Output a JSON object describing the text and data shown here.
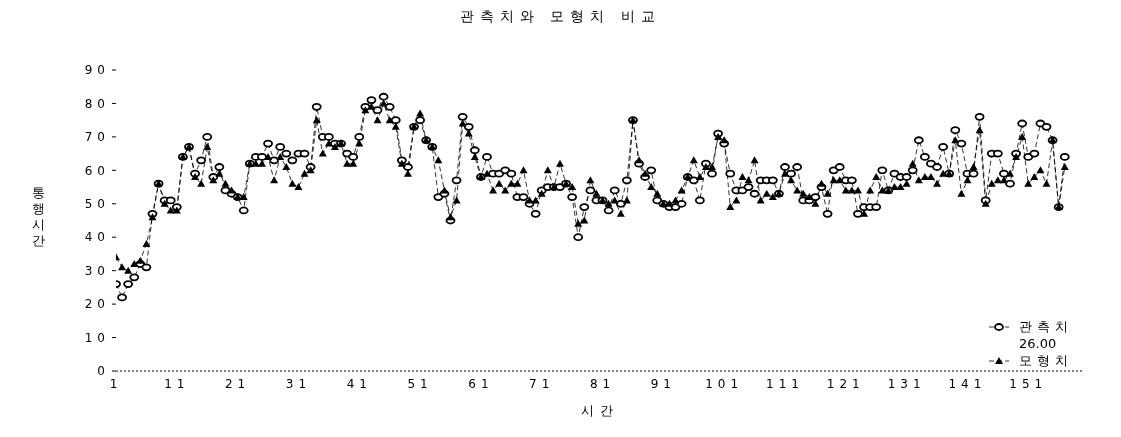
{
  "chart_data": {
    "type": "line",
    "title": "관측치와 모형치 비교",
    "xlabel": "시간",
    "ylabel": "통행시간",
    "x": [
      1,
      2,
      3,
      4,
      5,
      6,
      7,
      8,
      9,
      10,
      11,
      12,
      13,
      14,
      15,
      16,
      17,
      18,
      19,
      20,
      21,
      22,
      23,
      24,
      25,
      26,
      27,
      28,
      29,
      30,
      31,
      32,
      33,
      34,
      35,
      36,
      37,
      38,
      39,
      40,
      41,
      42,
      43,
      44,
      45,
      46,
      47,
      48,
      49,
      50,
      51,
      52,
      53,
      54,
      55,
      56,
      57,
      58,
      59,
      60,
      61,
      62,
      63,
      64,
      65,
      66,
      67,
      68,
      69,
      70,
      71,
      72,
      73,
      74,
      75,
      76,
      77,
      78,
      79,
      80,
      81,
      82,
      83,
      84,
      85,
      86,
      87,
      88,
      89,
      90,
      91,
      92,
      93,
      94,
      95,
      96,
      97,
      98,
      99,
      100,
      101,
      102,
      103,
      104,
      105,
      106,
      107,
      108,
      109,
      110,
      111,
      112,
      113,
      114,
      115,
      116,
      117,
      118,
      119,
      120,
      121,
      122,
      123,
      124,
      125,
      126,
      127,
      128,
      129,
      130,
      131,
      132,
      133,
      134,
      135,
      136,
      137,
      138,
      139,
      140,
      141,
      142,
      143,
      144,
      145,
      146,
      147,
      148,
      149,
      150,
      151,
      152,
      153,
      154,
      155,
      156,
      157
    ],
    "series": [
      {
        "name": "관측치",
        "color": "#000000",
        "marker": "circle",
        "values": [
          26,
          22,
          26,
          28,
          32,
          31,
          47,
          56,
          51,
          51,
          49,
          64,
          67,
          59,
          63,
          70,
          58,
          61,
          54,
          53,
          52,
          48,
          62,
          64,
          64,
          68,
          63,
          67,
          65,
          63,
          65,
          65,
          61,
          79,
          70,
          70,
          68,
          68,
          65,
          64,
          70,
          79,
          81,
          78,
          82,
          79,
          75,
          63,
          61,
          73,
          75,
          69,
          67,
          52,
          53,
          45,
          57,
          76,
          73,
          66,
          58,
          64,
          59,
          59,
          60,
          59,
          52,
          52,
          50,
          47,
          54,
          55,
          55,
          55,
          56,
          52,
          40,
          49,
          54,
          51,
          51,
          48,
          54,
          50,
          57,
          75,
          62,
          58,
          60,
          51,
          50,
          49,
          49,
          50,
          58,
          57,
          51,
          62,
          59,
          71,
          68,
          59,
          54,
          54,
          55,
          53,
          57,
          57,
          57,
          53,
          61,
          59,
          61,
          51,
          51,
          52,
          55,
          47,
          60,
          61,
          57,
          57,
          47,
          49,
          49,
          49,
          60,
          54,
          59,
          58,
          58,
          60,
          69,
          64,
          62,
          61,
          67,
          59,
          72,
          68,
          59,
          59,
          76,
          51,
          65,
          65,
          59,
          56,
          65,
          74,
          64,
          65,
          74,
          73,
          69,
          49,
          64
        ]
      },
      {
        "name": "모형치",
        "color": "#000000",
        "marker": "triangle",
        "values": [
          34,
          31,
          30,
          32,
          33,
          38,
          46,
          56,
          50,
          48,
          48,
          64,
          67,
          58,
          56,
          67,
          57,
          59,
          56,
          54,
          52,
          52,
          62,
          62,
          62,
          64,
          57,
          64,
          61,
          56,
          55,
          59,
          60,
          75,
          65,
          68,
          67,
          68,
          62,
          62,
          68,
          78,
          79,
          75,
          80,
          75,
          73,
          62,
          59,
          73,
          77,
          69,
          67,
          63,
          54,
          46,
          51,
          74,
          71,
          64,
          58,
          59,
          54,
          56,
          54,
          56,
          56,
          60,
          51,
          51,
          53,
          60,
          55,
          62,
          56,
          55,
          44,
          45,
          57,
          53,
          51,
          50,
          51,
          47,
          51,
          75,
          63,
          59,
          55,
          53,
          50,
          50,
          51,
          54,
          58,
          63,
          58,
          61,
          61,
          70,
          69,
          49,
          51,
          58,
          57,
          63,
          51,
          53,
          52,
          53,
          59,
          57,
          54,
          53,
          52,
          50,
          56,
          53,
          57,
          57,
          54,
          54,
          54,
          47,
          54,
          58,
          54,
          54,
          55,
          55,
          56,
          62,
          57,
          58,
          58,
          56,
          59,
          59,
          69,
          53,
          57,
          61,
          72,
          50,
          56,
          57,
          57,
          59,
          64,
          70,
          56,
          58,
          60,
          56,
          69,
          49,
          61
        ]
      }
    ],
    "xlim": [
      1,
      160
    ],
    "xticks": [
      1,
      11,
      21,
      31,
      41,
      51,
      61,
      71,
      81,
      91,
      101,
      111,
      121,
      131,
      141,
      151
    ],
    "ylim": [
      0,
      90
    ],
    "yticks": [
      0,
      10,
      20,
      30,
      40,
      50,
      60,
      70,
      80,
      90
    ],
    "grid": false,
    "legend": "bottom right",
    "line_style": "dashed",
    "annotations": [
      "26.00"
    ]
  }
}
